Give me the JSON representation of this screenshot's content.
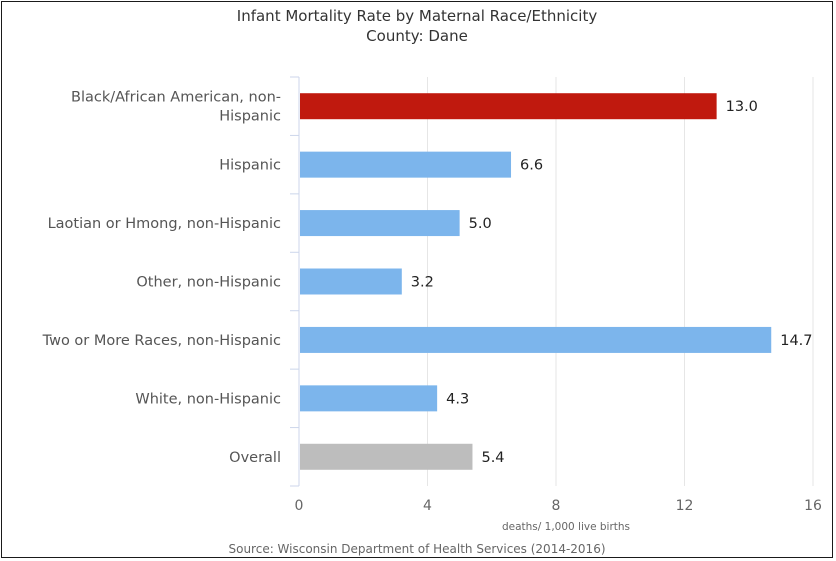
{
  "chart_data": {
    "type": "bar",
    "orientation": "horizontal",
    "title": "Infant Mortality Rate by Maternal Race/Ethnicity",
    "subtitle": "County: Dane",
    "categories": [
      [
        "Black/African American, non-",
        "Hispanic"
      ],
      [
        "Hispanic"
      ],
      [
        "Laotian or Hmong, non-Hispanic"
      ],
      [
        "Other, non-Hispanic"
      ],
      [
        "Two or More Races, non-Hispanic"
      ],
      [
        "White, non-Hispanic"
      ],
      [
        "Overall"
      ]
    ],
    "values": [
      13.0,
      6.6,
      5.0,
      3.2,
      14.7,
      4.3,
      5.4
    ],
    "value_labels": [
      "13.0",
      "6.6",
      "5.0",
      "3.2",
      "14.7",
      "4.3",
      "5.4"
    ],
    "bar_colors": [
      "#c0190e",
      "#7cb5ec",
      "#7cb5ec",
      "#7cb5ec",
      "#7cb5ec",
      "#7cb5ec",
      "#bdbdbd"
    ],
    "xlim": [
      0,
      16
    ],
    "xticks": [
      0,
      4,
      8,
      12,
      16
    ],
    "xlabel": "deaths/ 1,000 live births",
    "grid": true,
    "source": "Source: Wisconsin Department of Health Services (2014-2016)"
  }
}
